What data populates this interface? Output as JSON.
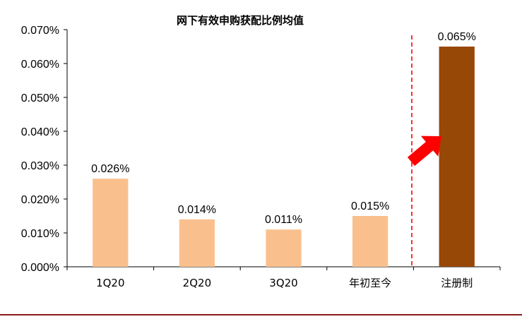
{
  "chart_data": {
    "type": "bar",
    "title": "网下有效申购获配比例均值",
    "categories": [
      "1Q20",
      "2Q20",
      "3Q20",
      "年初至今",
      "注册制"
    ],
    "values": [
      0.026,
      0.014,
      0.011,
      0.015,
      0.065
    ],
    "value_labels": [
      "0.026%",
      "0.014%",
      "0.011%",
      "0.015%",
      "0.065%"
    ],
    "unit": "%",
    "ylim": [
      0,
      0.07
    ],
    "yticks": [
      0.0,
      0.01,
      0.02,
      0.03,
      0.04,
      0.05,
      0.06,
      0.07
    ],
    "ytick_labels": [
      "0.000%",
      "0.010%",
      "0.020%",
      "0.030%",
      "0.040%",
      "0.050%",
      "0.060%",
      "0.070%"
    ],
    "grid": false,
    "legend": "none",
    "annotations": [
      "red dashed vertical separator before 注册制",
      "red arrow pointing up-right toward 注册制 bar"
    ],
    "colors": {
      "bars": [
        "#F9C08E",
        "#F9C08E",
        "#F9C08E",
        "#F9C08E",
        "#974706"
      ],
      "separator": "#FF0000",
      "arrow": "#FF0000",
      "footer_rule": "#8B1A1A"
    }
  }
}
